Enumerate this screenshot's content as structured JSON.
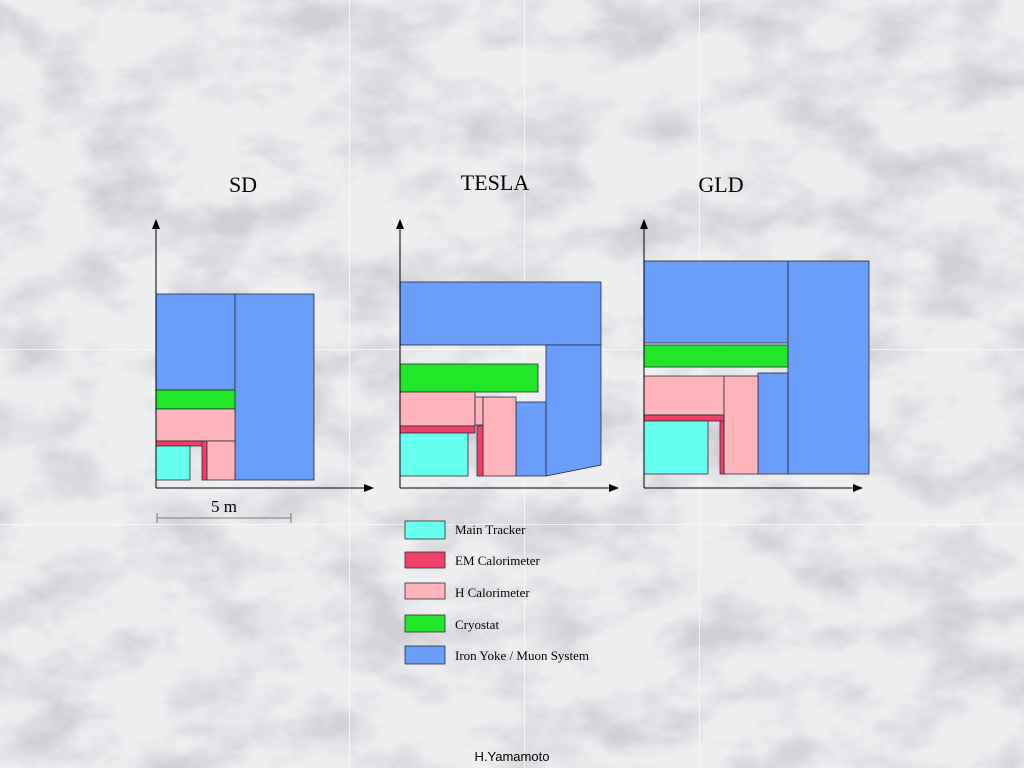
{
  "detectors": [
    {
      "id": "sd",
      "name": "SD"
    },
    {
      "id": "tesla",
      "name": "TESLA"
    },
    {
      "id": "gld",
      "name": "GLD"
    }
  ],
  "scale_label": "5 m",
  "legend": [
    {
      "key": "main_tracker",
      "label": "Main Tracker",
      "color": "#66fff0"
    },
    {
      "key": "em_calorimeter",
      "label": "EM Calorimeter",
      "color": "#f0406a"
    },
    {
      "key": "h_calorimeter",
      "label": "H Calorimeter",
      "color": "#ffb5bb"
    },
    {
      "key": "cryostat",
      "label": "Cryostat",
      "color": "#22e628"
    },
    {
      "key": "iron_yoke",
      "label": "Iron Yoke / Muon System",
      "color": "#6b9dfa"
    }
  ],
  "credit": "H.Yamamoto"
}
